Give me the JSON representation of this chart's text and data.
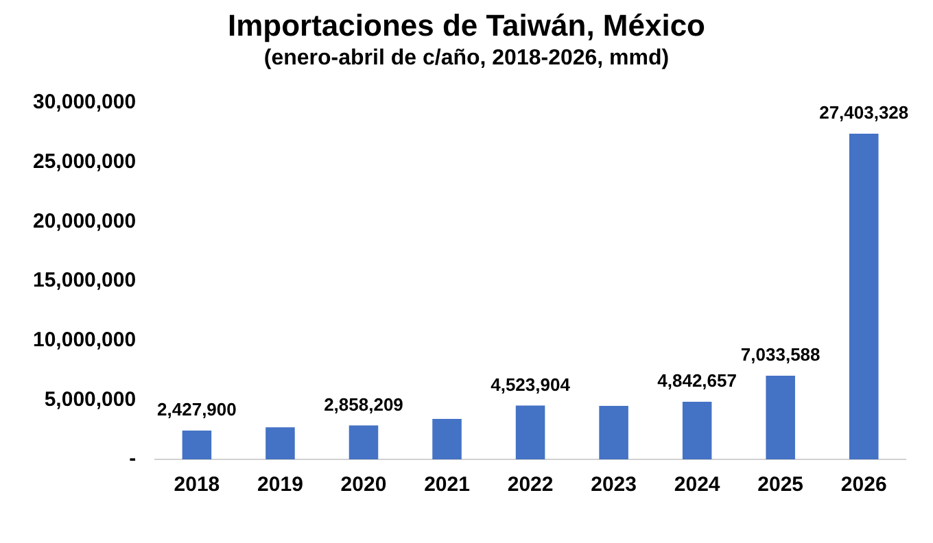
{
  "chart_data": {
    "type": "bar",
    "title": "Importaciones de Taiwán, México",
    "subtitle": "(enero-abril de c/año, 2018-2026, mmd)",
    "categories": [
      "2018",
      "2019",
      "2020",
      "2021",
      "2022",
      "2023",
      "2024",
      "2025",
      "2026"
    ],
    "values": [
      2427900,
      2700000,
      2858209,
      3400000,
      4523904,
      4500000,
      4842657,
      7033588,
      27403328
    ],
    "value_labels": [
      "2,427,900",
      null,
      "2,858,209",
      null,
      "4,523,904",
      null,
      "4,842,657",
      "7,033,588",
      "27,403,328"
    ],
    "color": "#4472c4",
    "ylim": [
      0,
      30000000
    ],
    "yticks": [
      {
        "value": 0,
        "label": "-"
      },
      {
        "value": 5000000,
        "label": "5,000,000"
      },
      {
        "value": 10000000,
        "label": "10,000,000"
      },
      {
        "value": 15000000,
        "label": "15,000,000"
      },
      {
        "value": 20000000,
        "label": "20,000,000"
      },
      {
        "value": 25000000,
        "label": "25,000,000"
      },
      {
        "value": 30000000,
        "label": "30,000,000"
      }
    ],
    "grid": false,
    "legend": false
  }
}
